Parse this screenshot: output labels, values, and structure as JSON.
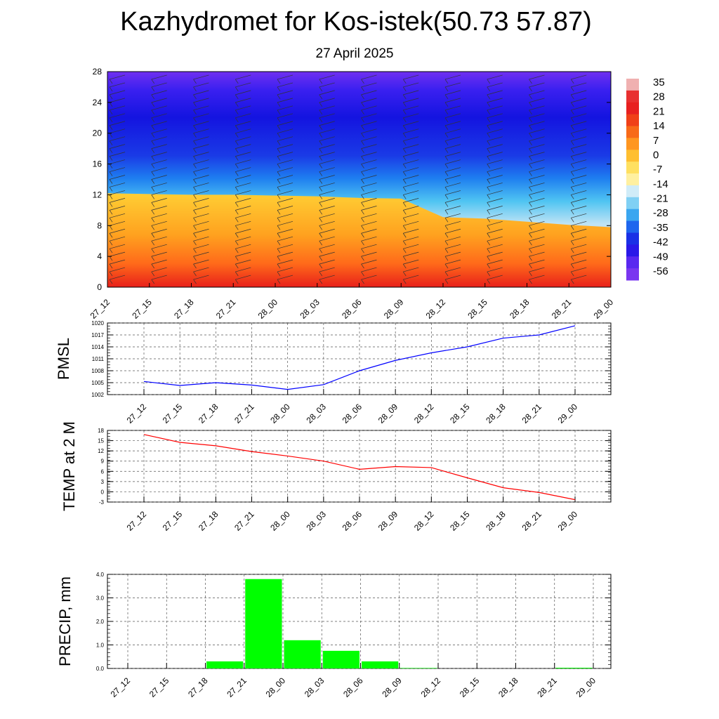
{
  "title": "Kazhydromet for Kos-istek(50.73 57.87)",
  "subtitle": "27 April 2025",
  "time_labels": [
    "27_12",
    "27_15",
    "27_18",
    "27_21",
    "28_00",
    "28_03",
    "28_06",
    "28_09",
    "28_12",
    "28_15",
    "28_18",
    "28_21",
    "29_00"
  ],
  "colorbar": {
    "labels": [
      "35",
      "28",
      "21",
      "14",
      "7",
      "0",
      "-7",
      "-14",
      "-21",
      "-28",
      "-35",
      "-42",
      "-49",
      "-56"
    ]
  },
  "chart_data": [
    {
      "type": "heatmap",
      "name": "temperature-height cross-section",
      "x": [
        "27_12",
        "27_15",
        "27_18",
        "27_21",
        "28_00",
        "28_03",
        "28_06",
        "28_09",
        "28_12",
        "28_15",
        "28_18",
        "28_21",
        "29_00"
      ],
      "y_ticks": [
        "0",
        "4",
        "8",
        "12",
        "16",
        "20",
        "24",
        "28"
      ],
      "ylim": [
        0,
        28
      ],
      "colorbar_range": [
        -56,
        35
      ],
      "freezing_level": [
        12.2,
        12.1,
        12.0,
        12.0,
        11.9,
        11.8,
        11.6,
        11.5,
        9.1,
        8.9,
        8.5,
        8.1,
        7.8
      ]
    },
    {
      "type": "line",
      "ylabel": "PMSL",
      "x": [
        "27_12",
        "27_15",
        "27_18",
        "27_21",
        "28_00",
        "28_03",
        "28_06",
        "28_09",
        "28_12",
        "28_15",
        "28_18",
        "28_21",
        "29_00"
      ],
      "values": [
        1005.3,
        1004.3,
        1005.0,
        1004.4,
        1003.3,
        1004.5,
        1008.0,
        1010.6,
        1012.5,
        1014.0,
        1016.2,
        1017.0,
        1019.3
      ],
      "ylim": [
        1002,
        1020
      ],
      "y_ticks": [
        "1020",
        "1017",
        "1014",
        "1011",
        "1008",
        "1005",
        "1002"
      ],
      "color": "#0000ff",
      "grid": true
    },
    {
      "type": "line",
      "ylabel": "TEMP at 2 M",
      "x": [
        "27_12",
        "27_15",
        "27_18",
        "27_21",
        "28_00",
        "28_03",
        "28_06",
        "28_09",
        "28_12",
        "28_15",
        "28_18",
        "28_21",
        "29_00"
      ],
      "values": [
        16.8,
        14.5,
        13.5,
        11.8,
        10.5,
        9.0,
        6.6,
        7.4,
        7.1,
        4.1,
        1.2,
        -0.2,
        -2.3
      ],
      "ylim": [
        -3,
        18
      ],
      "y_ticks": [
        "18",
        "15",
        "12",
        "9",
        "6",
        "3",
        "0",
        "-3"
      ],
      "color": "#ff0000",
      "grid": true
    },
    {
      "type": "bar",
      "ylabel": "PRECIP, mm",
      "categories": [
        "27_12",
        "27_15",
        "27_18",
        "27_21",
        "28_00",
        "28_03",
        "28_06",
        "28_09",
        "28_12",
        "28_15",
        "28_18",
        "28_21",
        "29_00"
      ],
      "values": [
        0,
        0,
        0.3,
        3.8,
        1.2,
        0.75,
        0.3,
        0.02,
        0,
        0,
        0,
        0.03,
        0
      ],
      "ylim": [
        0,
        4.0
      ],
      "y_ticks": [
        "4.0",
        "3.0",
        "2.0",
        "1.0",
        "0.0"
      ],
      "color": "#00ff00",
      "grid": true
    }
  ]
}
